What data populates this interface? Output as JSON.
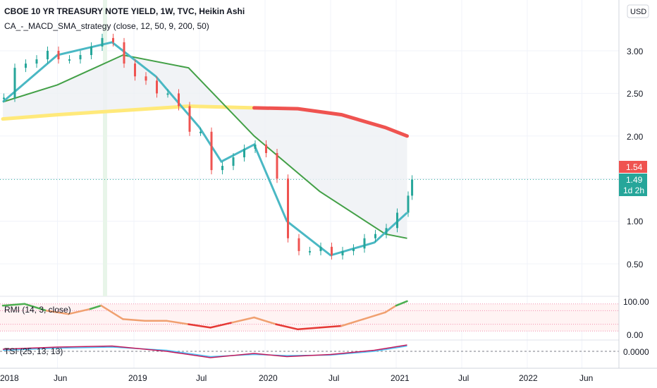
{
  "header": {
    "title": "CBOE 10 YR TREASURY NOTE YIELD, 1W, TVC, Heikin Ashi",
    "indicator": "CA_-_MACD_SMA_strategy (close, 12, 50, 9, 200, 50)"
  },
  "currency_button": "USD",
  "price_badges": {
    "upper": "1.54",
    "last": "1.49",
    "countdown": "1d 2h"
  },
  "panes": {
    "rmi_label": "RMI (14, 3, close)",
    "tsi_label": "TSI (25, 13, 13)"
  },
  "colors": {
    "up": "#26a69a",
    "down": "#ef5350",
    "sma200": "#ef5350",
    "sma200_highlight": "#ffe97a",
    "ema_fast": "#4ab8c4",
    "ema_green": "#43a047",
    "ema_blue": "#5b5fd6",
    "ema_red": "#ef5350",
    "rmi_up": "#4caf50",
    "rmi_mid": "#f0a070",
    "rmi_down": "#e53935",
    "tsi_main": "#c2185b",
    "tsi_signal": "#4fc3f7",
    "last_price": "#26a69a",
    "upper_badge": "#ef5350"
  },
  "chart_data": [
    {
      "type": "candlestick",
      "title": "CBOE 10 YR TREASURY NOTE YIELD, 1W, TVC, Heikin Ashi",
      "x_ticks": [
        "2018",
        "Jun",
        "2019",
        "Jul",
        "2020",
        "Jul",
        "2021",
        "Jul",
        "2022",
        "Jun"
      ],
      "y_ticks": [
        "3.00",
        "2.50",
        "2.00",
        "1.50",
        "1.00",
        "0.50"
      ],
      "ylim": [
        0.3,
        3.3
      ],
      "last_value": 1.49,
      "series": [
        {
          "name": "price (weekly Heikin Ashi close, approx.)",
          "points": [
            [
              "2018-01",
              2.45
            ],
            [
              "2018-02",
              2.8
            ],
            [
              "2018-03",
              2.85
            ],
            [
              "2018-04",
              2.9
            ],
            [
              "2018-05",
              3.0
            ],
            [
              "2018-06",
              2.9
            ],
            [
              "2018-07",
              2.9
            ],
            [
              "2018-08",
              2.95
            ],
            [
              "2018-09",
              3.05
            ],
            [
              "2018-10",
              3.15
            ],
            [
              "2018-11",
              3.1
            ],
            [
              "2018-12",
              2.85
            ],
            [
              "2019-01",
              2.7
            ],
            [
              "2019-02",
              2.65
            ],
            [
              "2019-03",
              2.5
            ],
            [
              "2019-04",
              2.5
            ],
            [
              "2019-05",
              2.35
            ],
            [
              "2019-06",
              2.05
            ],
            [
              "2019-07",
              2.05
            ],
            [
              "2019-08",
              1.6
            ],
            [
              "2019-09",
              1.65
            ],
            [
              "2019-10",
              1.75
            ],
            [
              "2019-11",
              1.85
            ],
            [
              "2019-12",
              1.9
            ],
            [
              "2020-01",
              1.8
            ],
            [
              "2020-02",
              1.5
            ],
            [
              "2020-03",
              0.8
            ],
            [
              "2020-04",
              0.65
            ],
            [
              "2020-05",
              0.65
            ],
            [
              "2020-06",
              0.7
            ],
            [
              "2020-07",
              0.6
            ],
            [
              "2020-08",
              0.65
            ],
            [
              "2020-09",
              0.68
            ],
            [
              "2020-10",
              0.8
            ],
            [
              "2020-11",
              0.85
            ],
            [
              "2020-12",
              0.92
            ],
            [
              "2021-01",
              1.1
            ],
            [
              "2021-02",
              1.3
            ],
            [
              "2021-02b",
              1.49
            ]
          ]
        },
        {
          "name": "SMA 200 (approx.)",
          "points": [
            [
              "2018-01",
              2.2
            ],
            [
              "2018-06",
              2.25
            ],
            [
              "2018-12",
              2.3
            ],
            [
              "2019-06",
              2.35
            ],
            [
              "2019-12",
              2.33
            ],
            [
              "2020-04",
              2.32
            ],
            [
              "2020-08",
              2.25
            ],
            [
              "2020-12",
              2.1
            ],
            [
              "2021-02",
              2.0
            ]
          ]
        },
        {
          "name": "fast EMA (approx.)",
          "points": [
            [
              "2018-01",
              2.4
            ],
            [
              "2018-06",
              2.95
            ],
            [
              "2018-11",
              3.1
            ],
            [
              "2019-03",
              2.7
            ],
            [
              "2019-07",
              2.1
            ],
            [
              "2019-09",
              1.7
            ],
            [
              "2019-12",
              1.9
            ],
            [
              "2020-03",
              1.0
            ],
            [
              "2020-07",
              0.6
            ],
            [
              "2020-11",
              0.75
            ],
            [
              "2021-02",
              1.1
            ]
          ]
        },
        {
          "name": "slow EMA (approx.)",
          "points": [
            [
              "2018-01",
              2.4
            ],
            [
              "2018-06",
              2.6
            ],
            [
              "2018-12",
              2.95
            ],
            [
              "2019-06",
              2.8
            ],
            [
              "2019-12",
              2.0
            ],
            [
              "2020-06",
              1.35
            ],
            [
              "2020-12",
              0.85
            ],
            [
              "2021-02",
              0.8
            ]
          ]
        }
      ]
    },
    {
      "type": "line",
      "title": "RMI (14, 3, close)",
      "y_ticks": [
        "100.00",
        "0.00"
      ],
      "ylim": [
        -10,
        110
      ],
      "series": [
        {
          "name": "RMI (approx.)",
          "points": [
            [
              "2018-01",
              85
            ],
            [
              "2018-03",
              90
            ],
            [
              "2018-05",
              70
            ],
            [
              "2018-07",
              60
            ],
            [
              "2018-09",
              75
            ],
            [
              "2018-10",
              85
            ],
            [
              "2018-12",
              45
            ],
            [
              "2019-02",
              40
            ],
            [
              "2019-04",
              40
            ],
            [
              "2019-06",
              30
            ],
            [
              "2019-08",
              20
            ],
            [
              "2019-10",
              35
            ],
            [
              "2019-12",
              50
            ],
            [
              "2020-02",
              30
            ],
            [
              "2020-04",
              15
            ],
            [
              "2020-06",
              20
            ],
            [
              "2020-08",
              25
            ],
            [
              "2020-10",
              45
            ],
            [
              "2020-12",
              65
            ],
            [
              "2021-01",
              85
            ],
            [
              "2021-02",
              98
            ]
          ]
        }
      ]
    },
    {
      "type": "line",
      "title": "TSI (25, 13, 13)",
      "y_ticks": [
        "0.0000"
      ],
      "series": [
        {
          "name": "TSI (approx.)",
          "points": [
            [
              "2018-01",
              0.1
            ],
            [
              "2018-06",
              0.2
            ],
            [
              "2018-11",
              0.25
            ],
            [
              "2019-04",
              0.0
            ],
            [
              "2019-08",
              -0.3
            ],
            [
              "2019-12",
              -0.1
            ],
            [
              "2020-03",
              -0.25
            ],
            [
              "2020-07",
              -0.15
            ],
            [
              "2020-11",
              0.05
            ],
            [
              "2021-02",
              0.3
            ]
          ]
        },
        {
          "name": "TSI signal (approx.)",
          "points": [
            [
              "2018-01",
              0.05
            ],
            [
              "2018-06",
              0.15
            ],
            [
              "2018-11",
              0.2
            ],
            [
              "2019-04",
              0.05
            ],
            [
              "2019-08",
              -0.25
            ],
            [
              "2019-12",
              -0.15
            ],
            [
              "2020-03",
              -0.2
            ],
            [
              "2020-07",
              -0.18
            ],
            [
              "2020-11",
              0.0
            ],
            [
              "2021-02",
              0.25
            ]
          ]
        }
      ]
    }
  ]
}
